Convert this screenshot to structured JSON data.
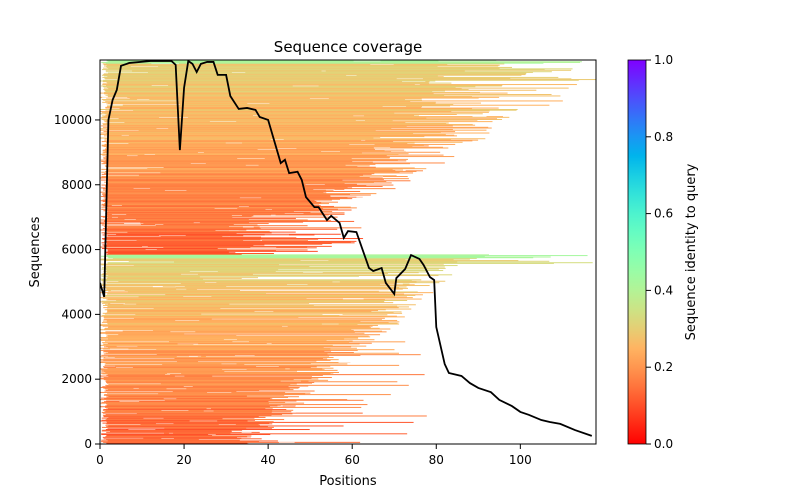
{
  "chart_data": {
    "type": "heatmap",
    "title": "Sequence coverage",
    "xlabel": "Positions",
    "ylabel": "Sequences",
    "xlim": [
      0,
      118
    ],
    "ylim": [
      0,
      11850
    ],
    "xticks": [
      0,
      20,
      40,
      60,
      80,
      100
    ],
    "yticks": [
      0,
      2000,
      4000,
      6000,
      8000,
      10000
    ],
    "colorbar": {
      "label": "Sequence identity to query",
      "range": [
        0,
        1
      ],
      "ticks": [
        "0.0",
        "0.2",
        "0.4",
        "0.6",
        "0.8",
        "1.0"
      ],
      "colormap": "rainbow_r"
    },
    "coverage_line": {
      "color": "#000000",
      "x": [
        0,
        1,
        2,
        3,
        4,
        5,
        7,
        12,
        17,
        18,
        19,
        20,
        21,
        22,
        23,
        24,
        25.5,
        27,
        28,
        30,
        31,
        33,
        35,
        37,
        38,
        40,
        43,
        44,
        45,
        47,
        48,
        49,
        51,
        52,
        54,
        55,
        57,
        58,
        59,
        61,
        63,
        64,
        65,
        67,
        68,
        70,
        70.5,
        72.6,
        74,
        76,
        77,
        78.5,
        79.5,
        80,
        82,
        83,
        86,
        88,
        90,
        93,
        95,
        98,
        100,
        102,
        105,
        107,
        109.5,
        113,
        117
      ],
      "y": [
        4970,
        4540,
        10000,
        10620,
        10930,
        11670,
        11760,
        11820,
        11820,
        11700,
        9070,
        10990,
        11820,
        11730,
        11480,
        11730,
        11790,
        11790,
        11390,
        11390,
        10740,
        10340,
        10370,
        10310,
        10090,
        10000,
        8670,
        8770,
        8360,
        8400,
        8150,
        7620,
        7310,
        7310,
        6910,
        7040,
        6820,
        6360,
        6570,
        6540,
        5800,
        5430,
        5340,
        5430,
        4970,
        4630,
        5120,
        5400,
        5830,
        5710,
        5520,
        5150,
        5060,
        3610,
        2470,
        2190,
        2100,
        1880,
        1730,
        1600,
        1360,
        1170,
        990,
        900,
        740,
        680,
        620,
        430,
        250
      ]
    },
    "msa_blocks": [
      {
        "seq_range": [
          0,
          5850
        ],
        "typical_end_position": 80,
        "identity_range": [
          0.08,
          0.42
        ]
      },
      {
        "seq_range": [
          5850,
          11850
        ],
        "typical_end_position": 118,
        "identity_range": [
          0.08,
          0.42
        ]
      }
    ]
  }
}
